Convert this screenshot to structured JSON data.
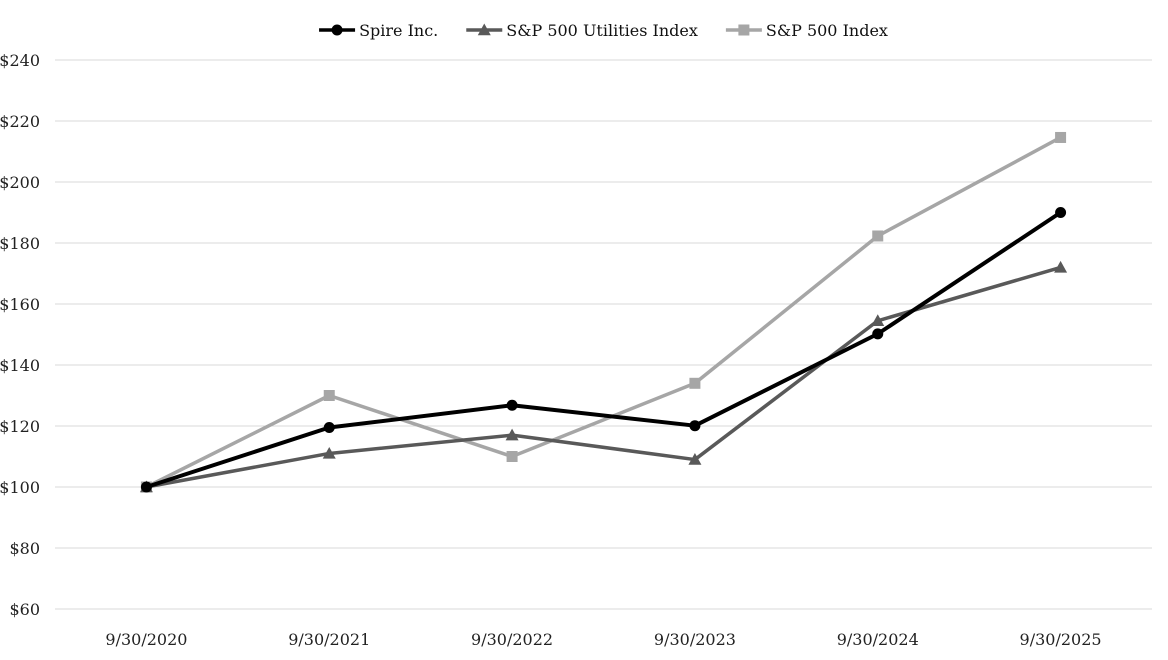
{
  "chart_data": {
    "type": "line",
    "categories": [
      "9/30/2020",
      "9/30/2021",
      "9/30/2022",
      "9/30/2023",
      "9/30/2024",
      "9/30/2025"
    ],
    "y_ticks": [
      "$60",
      "$80",
      "$100",
      "$120",
      "$140",
      "$160",
      "$180",
      "$200",
      "$220",
      "$240"
    ],
    "ylim": [
      60,
      240
    ],
    "grid": true,
    "legend_position": "top-center",
    "series": [
      {
        "name": "Spire Inc.",
        "values": [
          100,
          119.5,
          126.8,
          120.1,
          150.2,
          190
        ],
        "color": "#000000",
        "marker": "circle"
      },
      {
        "name": "S&P 500 Utilities Index",
        "values": [
          100,
          111,
          117,
          109,
          154.5,
          172
        ],
        "color": "#595959",
        "marker": "triangle"
      },
      {
        "name": "S&P 500 Index",
        "values": [
          100,
          130,
          110,
          134,
          182.3,
          214.6
        ],
        "color": "#a6a6a6",
        "marker": "square"
      }
    ]
  }
}
